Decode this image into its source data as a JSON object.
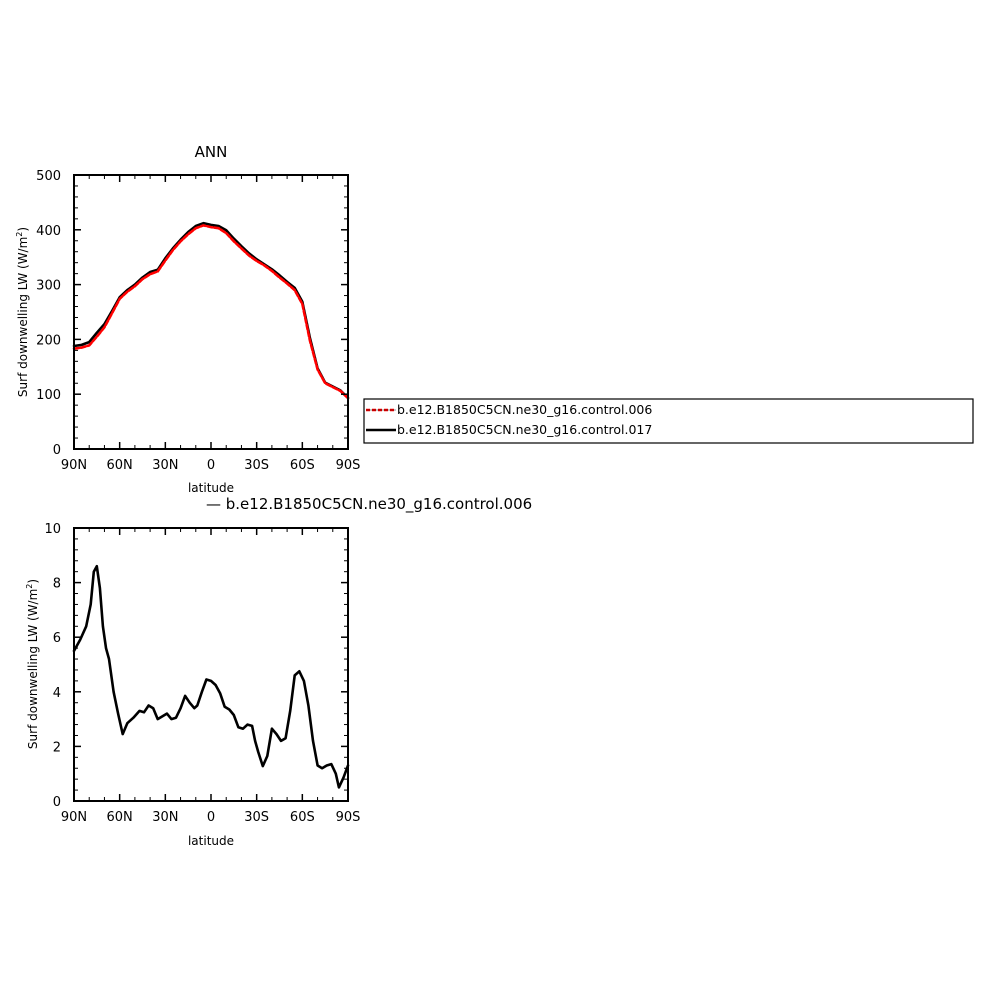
{
  "chart_data": [
    {
      "type": "line",
      "title": "ANN",
      "xlabel": "latitude",
      "ylabel": "Surf downwelling LW (W/m²)",
      "ylabel_main": "Surf downwelling LW (W/m",
      "ylabel_sup": "2",
      "ylabel_close": ")",
      "xlim": [
        90,
        -90
      ],
      "ylim": [
        0,
        500
      ],
      "xticks": [
        90,
        60,
        30,
        0,
        -30,
        -60,
        -90
      ],
      "xticklabels": [
        "90N",
        "60N",
        "30N",
        "0",
        "30S",
        "60S",
        "90S"
      ],
      "yticks": [
        0,
        100,
        200,
        300,
        400,
        500
      ],
      "yticklabels": [
        "0",
        "100",
        "200",
        "300",
        "400",
        "500"
      ],
      "legend": {
        "position": "right",
        "entries": [
          "b.e12.B1850C5CN.ne30_g16.control.006",
          "b.e12.B1850C5CN.ne30_g16.control.017"
        ]
      },
      "series": [
        {
          "name": "b.e12.B1850C5CN.ne30_g16.control.006",
          "color": "#ff0000",
          "style": "dashed",
          "x": [
            90,
            85,
            80,
            75,
            70,
            65,
            60,
            55,
            50,
            45,
            40,
            35,
            30,
            25,
            20,
            15,
            10,
            5,
            0,
            -5,
            -10,
            -15,
            -20,
            -25,
            -30,
            -35,
            -40,
            -45,
            -50,
            -55,
            -60,
            -65,
            -70,
            -75,
            -80,
            -85,
            -90
          ],
          "y": [
            183,
            185,
            189,
            205,
            222,
            248,
            274,
            287,
            297,
            310,
            319,
            324,
            344,
            363,
            379,
            392,
            403,
            408,
            405,
            403,
            394,
            379,
            366,
            353,
            343,
            335,
            325,
            313,
            302,
            290,
            265,
            198,
            145,
            120,
            113,
            106,
            93
          ]
        },
        {
          "name": "b.e12.B1850C5CN.ne30_g16.control.017",
          "color": "#000000",
          "style": "solid",
          "x": [
            90,
            85,
            80,
            75,
            70,
            65,
            60,
            55,
            50,
            45,
            40,
            35,
            30,
            25,
            20,
            15,
            10,
            5,
            0,
            -5,
            -10,
            -15,
            -20,
            -25,
            -30,
            -35,
            -40,
            -45,
            -50,
            -55,
            -60,
            -65,
            -70,
            -75,
            -80,
            -85,
            -90
          ],
          "y": [
            188,
            190,
            195,
            212,
            228,
            252,
            277,
            290,
            300,
            313,
            323,
            327,
            348,
            366,
            382,
            396,
            407,
            412,
            409,
            407,
            399,
            384,
            370,
            357,
            346,
            337,
            328,
            317,
            305,
            294,
            269,
            203,
            147,
            121,
            114,
            107,
            93
          ]
        }
      ]
    },
    {
      "type": "line",
      "title": "— b.e12.B1850C5CN.ne30_g16.control.006",
      "xlabel": "latitude",
      "ylabel": "Surf downwelling LW (W/m²)",
      "ylabel_main": "Surf downwelling LW (W/m",
      "ylabel_sup": "2",
      "ylabel_close": ")",
      "xlim": [
        90,
        -90
      ],
      "ylim": [
        0,
        10
      ],
      "xticks": [
        90,
        60,
        30,
        0,
        -30,
        -60,
        -90
      ],
      "xticklabels": [
        "90N",
        "60N",
        "30N",
        "0",
        "30S",
        "60S",
        "90S"
      ],
      "yticks": [
        0,
        2,
        4,
        6,
        8,
        10
      ],
      "yticklabels": [
        "0",
        "2",
        "4",
        "6",
        "8",
        "10"
      ],
      "series": [
        {
          "color": "#000000",
          "style": "solid",
          "x": [
            90,
            86,
            82,
            79,
            77,
            75,
            73,
            71,
            69,
            67,
            64,
            61,
            58,
            55,
            51,
            47,
            44,
            41,
            38,
            35,
            32,
            29,
            26,
            23,
            20,
            17,
            14,
            11,
            9,
            6,
            3,
            0,
            -3,
            -6,
            -9,
            -12,
            -15,
            -18,
            -21,
            -24,
            -27,
            -29,
            -31,
            -34,
            -37,
            -40,
            -43,
            -46,
            -49,
            -52,
            -55,
            -58,
            -61,
            -64,
            -67,
            -70,
            -73,
            -76,
            -79,
            -82,
            -84,
            -87,
            -90
          ],
          "y": [
            5.5,
            5.9,
            6.4,
            7.2,
            8.4,
            8.6,
            7.8,
            6.4,
            5.6,
            5.2,
            4.0,
            3.2,
            2.45,
            2.85,
            3.05,
            3.3,
            3.25,
            3.5,
            3.4,
            3.0,
            3.1,
            3.2,
            3.0,
            3.05,
            3.4,
            3.85,
            3.6,
            3.4,
            3.5,
            4.0,
            4.45,
            4.4,
            4.25,
            3.95,
            3.45,
            3.35,
            3.15,
            2.7,
            2.65,
            2.8,
            2.75,
            2.2,
            1.8,
            1.28,
            1.65,
            2.65,
            2.45,
            2.2,
            2.3,
            3.3,
            4.6,
            4.75,
            4.4,
            3.5,
            2.2,
            1.3,
            1.2,
            1.3,
            1.35,
            1.0,
            0.5,
            0.85,
            1.3
          ]
        }
      ]
    }
  ]
}
